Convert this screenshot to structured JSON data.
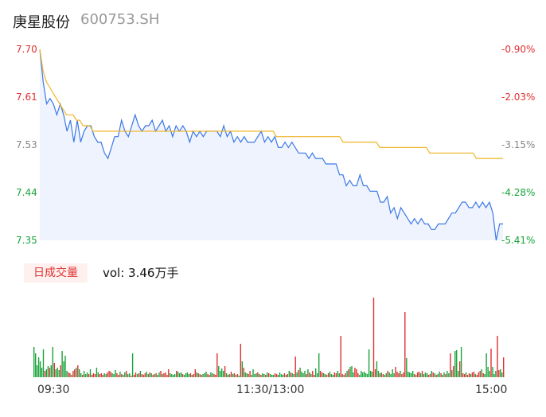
{
  "header": {
    "name": "庚星股份",
    "code": "600753.SH"
  },
  "chart_data": [
    {
      "type": "line",
      "y_axis_left": [
        "7.70",
        "7.61",
        "7.53",
        "7.44",
        "7.35"
      ],
      "y_axis_right": [
        "-0.90%",
        "-2.03%",
        "-3.15%",
        "-4.28%",
        "-5.41%"
      ],
      "ylim": [
        7.35,
        7.7
      ],
      "x_labels": [
        "09:30",
        "11:30/13:00",
        "15:00"
      ],
      "series": [
        {
          "color": "#3b78e7",
          "values": [
            7.7,
            7.64,
            7.6,
            7.61,
            7.6,
            7.58,
            7.6,
            7.58,
            7.55,
            7.57,
            7.53,
            7.57,
            7.53,
            7.55,
            7.56,
            7.56,
            7.54,
            7.53,
            7.53,
            7.51,
            7.5,
            7.52,
            7.54,
            7.54,
            7.57,
            7.55,
            7.54,
            7.56,
            7.58,
            7.56,
            7.55,
            7.56,
            7.56,
            7.57,
            7.55,
            7.56,
            7.57,
            7.55,
            7.56,
            7.54,
            7.56,
            7.55,
            7.56,
            7.55,
            7.53,
            7.55,
            7.54,
            7.55,
            7.54,
            7.55,
            7.55,
            7.55,
            7.55,
            7.54,
            7.56,
            7.54,
            7.55,
            7.53,
            7.54,
            7.53,
            7.54,
            7.53,
            7.53,
            7.53,
            7.54,
            7.55,
            7.53,
            7.54,
            7.53,
            7.54,
            7.52,
            7.52,
            7.53,
            7.52,
            7.53,
            7.52,
            7.51,
            7.51,
            7.51,
            7.5,
            7.51,
            7.5,
            7.5,
            7.5,
            7.49,
            7.49,
            7.49,
            7.49,
            7.47,
            7.47,
            7.45,
            7.46,
            7.45,
            7.45,
            7.47,
            7.45,
            7.45,
            7.44,
            7.44,
            7.44,
            7.42,
            7.42,
            7.43,
            7.4,
            7.41,
            7.39,
            7.41,
            7.4,
            7.39,
            7.38,
            7.39,
            7.38,
            7.39,
            7.38,
            7.38,
            7.37,
            7.37,
            7.38,
            7.38,
            7.38,
            7.39,
            7.4,
            7.4,
            7.41,
            7.42,
            7.42,
            7.41,
            7.41,
            7.42,
            7.41,
            7.42,
            7.41,
            7.42,
            7.4,
            7.35,
            7.38,
            7.38
          ]
        },
        {
          "color": "#f0b429",
          "values": [
            7.7,
            7.66,
            7.64,
            7.63,
            7.62,
            7.61,
            7.6,
            7.59,
            7.58,
            7.58,
            7.58,
            7.57,
            7.57,
            7.56,
            7.56,
            7.56,
            7.55,
            7.55,
            7.55,
            7.55,
            7.55,
            7.55,
            7.55,
            7.55,
            7.55,
            7.55,
            7.55,
            7.55,
            7.55,
            7.55,
            7.55,
            7.55,
            7.55,
            7.55,
            7.55,
            7.55,
            7.55,
            7.55,
            7.55,
            7.55,
            7.55,
            7.55,
            7.55,
            7.55,
            7.55,
            7.55,
            7.55,
            7.55,
            7.55,
            7.55,
            7.55,
            7.55,
            7.55,
            7.55,
            7.55,
            7.55,
            7.55,
            7.55,
            7.55,
            7.55,
            7.55,
            7.55,
            7.55,
            7.55,
            7.55,
            7.55,
            7.55,
            7.55,
            7.55,
            7.55,
            7.55,
            7.54,
            7.54,
            7.54,
            7.54,
            7.54,
            7.54,
            7.54,
            7.54,
            7.54,
            7.54,
            7.54,
            7.54,
            7.54,
            7.54,
            7.54,
            7.54,
            7.54,
            7.54,
            7.54,
            7.54,
            7.53,
            7.53,
            7.53,
            7.53,
            7.53,
            7.53,
            7.53,
            7.53,
            7.53,
            7.53,
            7.53,
            7.52,
            7.52,
            7.52,
            7.52,
            7.52,
            7.52,
            7.52,
            7.52,
            7.52,
            7.52,
            7.52,
            7.52,
            7.52,
            7.52,
            7.52,
            7.51,
            7.51,
            7.51,
            7.51,
            7.51,
            7.51,
            7.51,
            7.51,
            7.51,
            7.51,
            7.51,
            7.51,
            7.51,
            7.51,
            7.5,
            7.5,
            7.5,
            7.5,
            7.5,
            7.5,
            7.5,
            7.5,
            7.5
          ]
        }
      ]
    },
    {
      "type": "bar",
      "volume_label": "日成交量",
      "volume_text": "vol: 3.46万手",
      "up_color": "#e03030",
      "down_color": "#1aa33a",
      "values": [
        38,
        30,
        15,
        25,
        20,
        12,
        35,
        8,
        10,
        14,
        12,
        15,
        38,
        18,
        10,
        12,
        9,
        15,
        33,
        20,
        27,
        8,
        6,
        5,
        3,
        8,
        10,
        12,
        15,
        10,
        5,
        3,
        8,
        4,
        6,
        4,
        10,
        3,
        5,
        4,
        12,
        6,
        4,
        5,
        3,
        5,
        4,
        6,
        8,
        7,
        5,
        4,
        9,
        5,
        3,
        7,
        4,
        3,
        6,
        8,
        4,
        5,
        2,
        30,
        3,
        6,
        4,
        5,
        8,
        4,
        3,
        5,
        7,
        4,
        6,
        5,
        3,
        4,
        5,
        3,
        6,
        8,
        4,
        5,
        6,
        3,
        10,
        5,
        4,
        3,
        4,
        8,
        7,
        5,
        6,
        4,
        3,
        5,
        6,
        4,
        5,
        3,
        4,
        10,
        6,
        5,
        4,
        3,
        4,
        5,
        7,
        4,
        3,
        6,
        5,
        4,
        3,
        30,
        14,
        8,
        11,
        8,
        14,
        5,
        3,
        4,
        7,
        4,
        5,
        3,
        4,
        2,
        42,
        20,
        12,
        6,
        5,
        4,
        8,
        3,
        10,
        4,
        5,
        6,
        4,
        3,
        5,
        4,
        3,
        6,
        5,
        4,
        3,
        3,
        5,
        4,
        3,
        6,
        4,
        3,
        5,
        3,
        4,
        8,
        6,
        5,
        4,
        26,
        6,
        9,
        12,
        7,
        5,
        8,
        4,
        10,
        6,
        4,
        8,
        3,
        11,
        5,
        30,
        8,
        6,
        5,
        4,
        3,
        5,
        7,
        4,
        3,
        6,
        5,
        8,
        5,
        52,
        4,
        3,
        5,
        8,
        10,
        13,
        14,
        6,
        12,
        10,
        5,
        3,
        8,
        6,
        7,
        5,
        4,
        35,
        8,
        7,
        100,
        10,
        20,
        8,
        5,
        6,
        4,
        3,
        5,
        8,
        6,
        4,
        10,
        5,
        13,
        7,
        5,
        8,
        4,
        6,
        82,
        24,
        7,
        6,
        5,
        8,
        4,
        3,
        6,
        7,
        5,
        8,
        4,
        6,
        5,
        3,
        4,
        8,
        6,
        5,
        3,
        4,
        7,
        5,
        3,
        6,
        4,
        8,
        5,
        30,
        9,
        14,
        33,
        34,
        8,
        20,
        38,
        5,
        4,
        6,
        3,
        5,
        4,
        6,
        7,
        4,
        3,
        6,
        8,
        10,
        5,
        4,
        30,
        13,
        8,
        36,
        13,
        4,
        8,
        52,
        9,
        10,
        6,
        25
      ],
      "colors": "dddddddudduddudddudddduuduududduddduduuudduuudduuuddduududdudduduududuuuddudududduduuuuddddudddudddduduudududdduudduuuddddudududududududduuddddududdududdduuddddudududdududdddududuuddduudduuddduudduudududdduuuddddddddduuddududdudddduuuduuuddddduduududdduudududdudduddududdduduuduuduuduuududddduddduudduddddd"
    }
  ]
}
